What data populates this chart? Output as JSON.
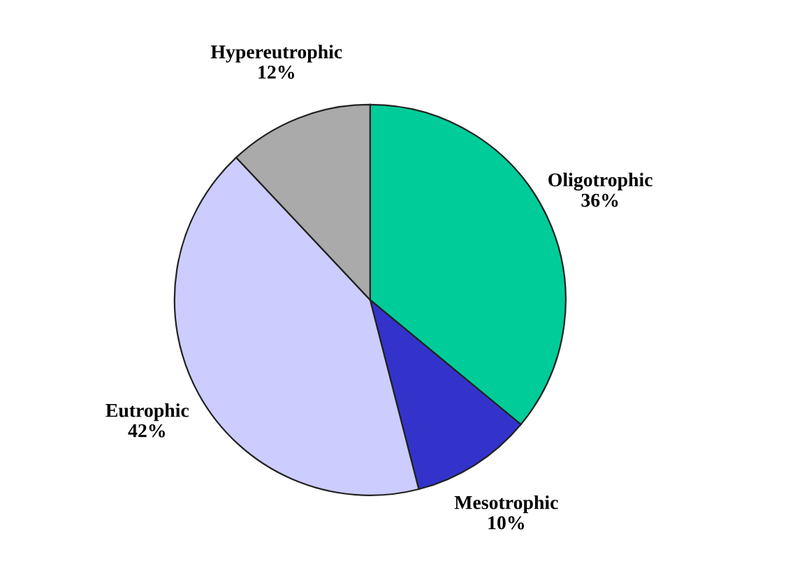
{
  "chart_data": {
    "type": "pie",
    "categories": [
      "Oligotrophic",
      "Mesotrophic",
      "Eutrophic",
      "Hypereutrophic"
    ],
    "values": [
      36,
      10,
      42,
      12
    ],
    "value_labels": [
      "36%",
      "10%",
      "42%",
      "12%"
    ],
    "colors": [
      "#00cc99",
      "#3333cc",
      "#ccccff",
      "#aaaaaa"
    ]
  }
}
